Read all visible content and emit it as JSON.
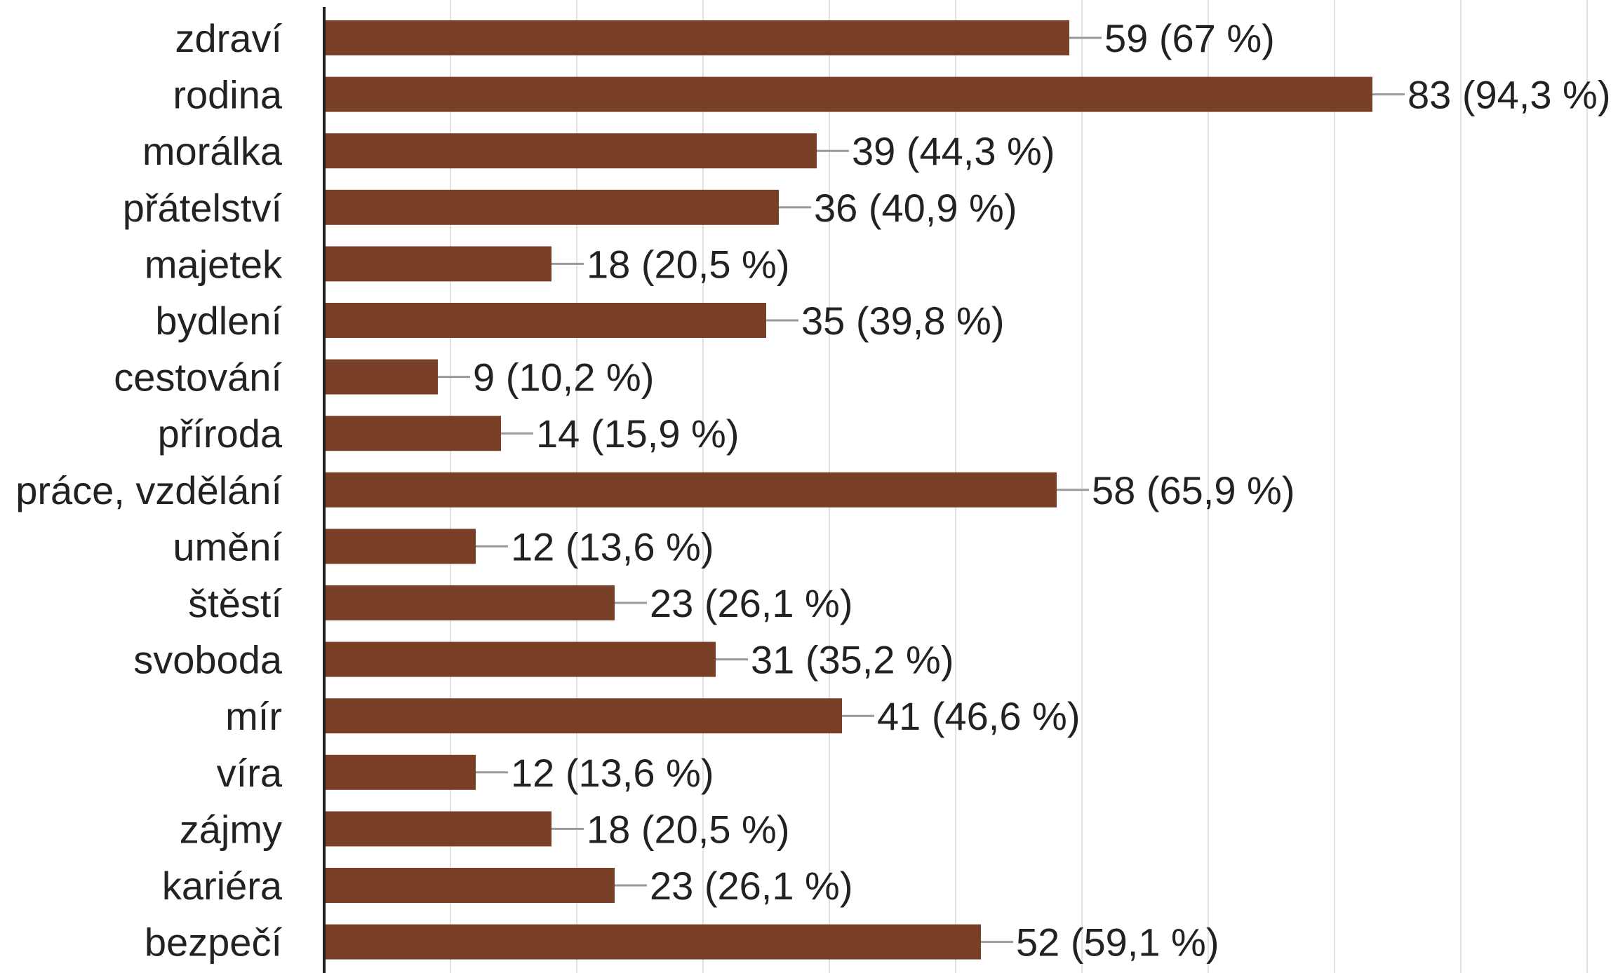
{
  "chart_data": {
    "type": "bar",
    "orientation": "horizontal",
    "categories": [
      "zdraví",
      "rodina",
      "morálka",
      "přátelství",
      "majetek",
      "bydlení",
      "cestování",
      "příroda",
      "práce, vzdělání",
      "umění",
      "štěstí",
      "svoboda",
      "mír",
      "víra",
      "zájmy",
      "kariéra",
      "bezpečí"
    ],
    "values": [
      59,
      83,
      39,
      36,
      18,
      35,
      9,
      14,
      58,
      12,
      23,
      31,
      41,
      12,
      18,
      23,
      52
    ],
    "data_labels": [
      "59 (67 %)",
      "83 (94,3 %)",
      "39 (44,3 %)",
      "36 (40,9 %)",
      "18 (20,5 %)",
      "35 (39,8 %)",
      "9 (10,2 %)",
      "14 (15,9 %)",
      "58 (65,9 %)",
      "12 (13,6 %)",
      "23 (26,1 %)",
      "31 (35,2 %)",
      "41 (46,6 %)",
      "12 (13,6 %)",
      "18 (20,5 %)",
      "23 (26,1 %)",
      "52 (59,1 %)"
    ],
    "xlim": [
      0,
      100
    ],
    "grid_step": 10,
    "grid": true,
    "legend": "none",
    "bar_color": "#7a4027",
    "grid_color": "#e2e2e2",
    "axis_color": "#222222",
    "leader_color": "#9a9a9a",
    "text_color": "#222222"
  }
}
